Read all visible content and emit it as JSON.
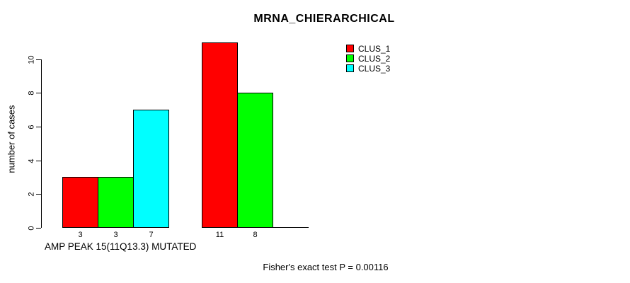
{
  "chart_data": {
    "type": "bar",
    "title": "MRNA_CHIERARCHICAL",
    "ylabel": "number of cases",
    "xlabel": "AMP PEAK 15(11Q13.3) MUTATED",
    "footnote": "Fisher's exact test P = 0.00116",
    "series": [
      {
        "name": "CLUS_1",
        "color": "#ff0000",
        "values": [
          3,
          11
        ]
      },
      {
        "name": "CLUS_2",
        "color": "#00ff00",
        "values": [
          3,
          8
        ]
      },
      {
        "name": "CLUS_3",
        "color": "#00ffff",
        "values": [
          7,
          0
        ]
      }
    ],
    "bar_value_labels": [
      [
        "3",
        "3",
        "7"
      ],
      [
        "11",
        "8",
        ""
      ]
    ],
    "yticks": [
      "0",
      "2",
      "4",
      "6",
      "8",
      "10"
    ],
    "ylim": [
      0,
      11
    ],
    "grid": false,
    "legend_position": "top-right",
    "axis_color": "#000000",
    "background_color": "#ffffff",
    "bar_border_color": "#000000"
  }
}
